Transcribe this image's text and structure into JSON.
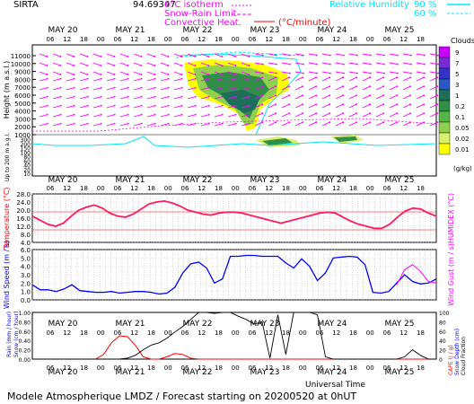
{
  "header": {
    "station": "SIRTA",
    "coords": "94.69347",
    "isotherm_label": "0°C isotherm",
    "snow_rain_label": "Snow-Rain Limit",
    "convective_label": "Convective Heat.",
    "convective_unit": "(°C/minute)",
    "rh_label": "Relative Humidity",
    "rh_90": "90 %",
    "rh_60": "60 %",
    "footer": "Modele Atmospherique LMDZ / Forecast starting on 20200520 at 0hUT",
    "universal_time": "Universal Time"
  },
  "colors": {
    "magenta": "#ff00ff",
    "cyan": "#00e5ff",
    "red": "#ff0000",
    "blue": "#0000ff",
    "black": "#000000",
    "temp_line": "#ff1a5e"
  },
  "chart_data": [
    {
      "type": "contour",
      "name": "clouds",
      "ylabel": "Height (m a.s.l.)",
      "ylabel_low": "Up to 200 m a.g.l.",
      "yticks": [
        "11000",
        "10000",
        "9000",
        "8000",
        "7000",
        "6000",
        "5000",
        "4000",
        "3000",
        "2000",
        "1000",
        "300",
        "200",
        "150",
        "100",
        "80",
        "60",
        "40",
        "20",
        "10"
      ],
      "days": [
        "MAY 20",
        "MAY 21",
        "MAY 22",
        "MAY 23",
        "MAY 24",
        "MAY 25"
      ],
      "hours": [
        "06",
        "12",
        "18",
        "00"
      ],
      "colorbar_title": "Clouds",
      "colorbar_unit": "(g/kg)",
      "colorbar_levels": [
        "9",
        "7",
        "5",
        "3",
        "1",
        "0.2",
        "0.1",
        "0.05",
        "0.02",
        "0.01"
      ],
      "colorbar_colors": [
        "#c800ff",
        "#7a2bd6",
        "#3333cc",
        "#2a58c8",
        "#1d6e5a",
        "#2f8f46",
        "#55b548",
        "#8fd14f",
        "#d9f06a",
        "#ffff00"
      ]
    },
    {
      "type": "line",
      "name": "temperature",
      "ylabel": "Temperature (°C)",
      "ylabel_right": "HUMIDEX (°C)",
      "yticks": [
        "28.0",
        "24.0",
        "20.0",
        "16.0",
        "12.0",
        "8.0",
        "4.0"
      ],
      "ylim": [
        2,
        28
      ],
      "values": [
        17.0,
        15.0,
        13.0,
        12.0,
        13.5,
        17.0,
        20.0,
        21.5,
        22.5,
        21.0,
        18.5,
        17.0,
        16.5,
        18.0,
        20.5,
        23.0,
        24.0,
        24.5,
        23.5,
        22.0,
        20.0,
        19.0,
        18.0,
        17.5,
        18.5,
        19.0,
        19.0,
        18.5,
        17.5,
        16.5,
        15.5,
        14.5,
        13.5,
        14.5,
        15.5,
        16.5,
        17.5,
        18.5,
        19.0,
        18.5,
        16.5,
        14.5,
        13.0,
        12.0,
        11.0,
        11.0,
        13.0,
        16.5,
        19.5,
        21.0,
        20.5,
        18.5,
        17.0
      ]
    },
    {
      "type": "line",
      "name": "wind",
      "ylabel": "Wind Speed (m / s)",
      "ylabel_right": "Wind Gust (m / s)",
      "yticks": [
        "6.0",
        "5.0",
        "4.0",
        "3.0",
        "2.0",
        "1.0",
        "0.0"
      ],
      "ylim": [
        0,
        6
      ],
      "series": [
        {
          "name": "Wind Speed",
          "values": [
            1.8,
            1.2,
            1.2,
            1.0,
            1.3,
            1.8,
            1.1,
            1.0,
            0.9,
            0.9,
            1.0,
            0.8,
            0.9,
            1.0,
            1.0,
            0.9,
            0.7,
            0.8,
            1.5,
            3.2,
            4.3,
            4.5,
            3.8,
            2.0,
            2.5,
            5.2,
            5.2,
            5.3,
            5.3,
            5.2,
            5.2,
            5.2,
            4.4,
            3.8,
            4.9,
            4.0,
            2.3,
            3.2,
            5.0,
            5.1,
            5.2,
            5.1,
            4.2,
            0.9,
            0.8,
            1.0,
            2.0,
            3.0,
            2.2,
            1.9,
            2.0,
            2.5
          ]
        },
        {
          "name": "Wind Gust",
          "values": [
            null,
            null,
            null,
            null,
            null,
            null,
            null,
            null,
            null,
            null,
            null,
            null,
            null,
            null,
            null,
            null,
            null,
            null,
            null,
            null,
            null,
            null,
            null,
            null,
            null,
            null,
            null,
            null,
            null,
            null,
            null,
            null,
            null,
            null,
            null,
            null,
            null,
            null,
            null,
            null,
            null,
            null,
            null,
            null,
            null,
            null,
            1.8,
            3.6,
            4.2,
            3.4,
            2.2,
            2.0
          ]
        }
      ]
    },
    {
      "type": "line",
      "name": "precipitation",
      "ylabel": "Rain (mm / hour)",
      "ylabel2": "Snow (cm / hour)",
      "ylabel_right": "CAPE (J / g)",
      "ylabel_right2": "Snow Depth (cm)",
      "ylabel_right3": "Cloud Fraction",
      "yticks": [
        "1.00",
        "0.80",
        "0.60",
        "0.40",
        "0.20",
        "0.00"
      ],
      "yticks_right": [
        "100",
        "80",
        "60",
        "40",
        "20",
        "0"
      ],
      "ylim": [
        0,
        1
      ],
      "series": [
        {
          "name": "Rain",
          "values": [
            0,
            0,
            0,
            0,
            0,
            0,
            0,
            0,
            0,
            0.1,
            0.35,
            0.5,
            0.48,
            0.3,
            0.05,
            0,
            0,
            0.05,
            0.12,
            0.1,
            0.02,
            0,
            0,
            0,
            0,
            0,
            0,
            0,
            0,
            0,
            0,
            0,
            0,
            0,
            0,
            0,
            0,
            0,
            0,
            0,
            0,
            0,
            0,
            0,
            0,
            0,
            0,
            0,
            0,
            0,
            0,
            0
          ]
        },
        {
          "name": "Cloud Fraction",
          "values": [
            0,
            0,
            0,
            0,
            0,
            0,
            0,
            0,
            0,
            0,
            0,
            0,
            0.02,
            0.08,
            0.2,
            0.3,
            0.35,
            0.45,
            0.58,
            0.7,
            0.85,
            1.0,
            1.0,
            0.98,
            1.0,
            1.0,
            0.92,
            0.85,
            0.75,
            0.8,
            0.02,
            0.95,
            0.1,
            1.0,
            1.0,
            1.0,
            0.95,
            0.05,
            0,
            0,
            0,
            0,
            0,
            0,
            0,
            0,
            0,
            0.05,
            0.2,
            0.08,
            0,
            0
          ]
        }
      ]
    }
  ]
}
